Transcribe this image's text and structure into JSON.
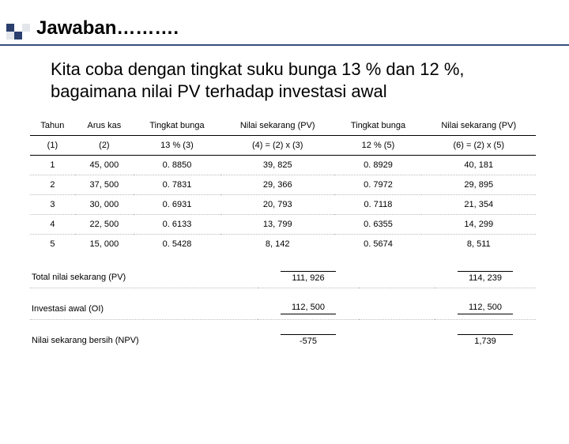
{
  "title": "Jawaban……….",
  "description": "Kita coba dengan tingkat suku bunga 13 % dan 12 %, bagaimana nilai PV terhadap investasi awal",
  "table": {
    "headers1": [
      "Tahun",
      "Arus kas",
      "Tingkat bunga",
      "Nilai sekarang (PV)",
      "Tingkat bunga",
      "Nilai sekarang (PV)"
    ],
    "headers2": [
      "(1)",
      "(2)",
      "13 %   (3)",
      "(4) = (2) x (3)",
      "12 %   (5)",
      "(6) = (2) x (5)"
    ],
    "rows": [
      [
        "1",
        "45, 000",
        "0. 8850",
        "39, 825",
        "0. 8929",
        "40, 181"
      ],
      [
        "2",
        "37, 500",
        "0. 7831",
        "29, 366",
        "0. 7972",
        "29, 895"
      ],
      [
        "3",
        "30, 000",
        "0. 6931",
        "20, 793",
        "0. 7118",
        "21, 354"
      ],
      [
        "4",
        "22, 500",
        "0. 6133",
        "13, 799",
        "0. 6355",
        "14, 299"
      ],
      [
        "5",
        "15, 000",
        "0. 5428",
        "8, 142",
        "0. 5674",
        "8, 511"
      ]
    ],
    "summary": [
      {
        "label": "Total nilai sekarang (PV)",
        "v1": "111, 926",
        "v2": "114, 239"
      },
      {
        "label": "Investasi awal (OI)",
        "v1": "112, 500",
        "v2": "112, 500"
      },
      {
        "label": "Nilai sekarang bersih (NPV)",
        "v1": "-575",
        "v2": "1,739"
      }
    ]
  }
}
